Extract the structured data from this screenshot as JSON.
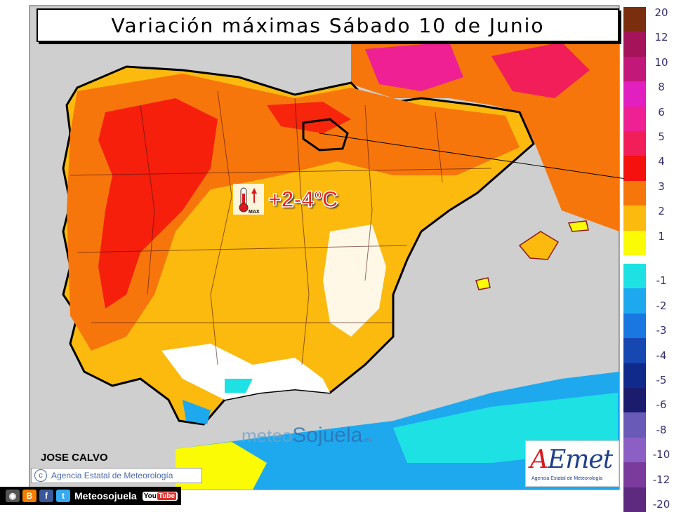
{
  "title": "Variación máximas Sábado 10 de Junio",
  "callout": {
    "value": "+2-4ºC",
    "icon": "thermometer-max-icon",
    "icon_label": "MAX"
  },
  "legend": [
    {
      "label": "20",
      "color": "#7a2e0e"
    },
    {
      "label": "12",
      "color": "#a5145a"
    },
    {
      "label": "10",
      "color": "#c2187a"
    },
    {
      "label": "8",
      "color": "#e21fbf"
    },
    {
      "label": "6",
      "color": "#ee2093"
    },
    {
      "label": "5",
      "color": "#f11e5a"
    },
    {
      "label": "4",
      "color": "#f5110d"
    },
    {
      "label": "3",
      "color": "#f7760c"
    },
    {
      "label": "2",
      "color": "#fbba0d"
    },
    {
      "label": "1",
      "color": "#fbfb06"
    },
    {
      "label": "-1",
      "color": "#1ee1e3"
    },
    {
      "label": "-2",
      "color": "#1ea9ef"
    },
    {
      "label": "-3",
      "color": "#1a76e0"
    },
    {
      "label": "-4",
      "color": "#1747b1"
    },
    {
      "label": "-5",
      "color": "#0f2a8a"
    },
    {
      "label": "-6",
      "color": "#1c1c6e"
    },
    {
      "label": "-8",
      "color": "#6a5ab8"
    },
    {
      "label": "-10",
      "color": "#8b5fc4"
    },
    {
      "label": "-12",
      "color": "#7a3b9c"
    },
    {
      "label": "-20",
      "color": "#5e2a80"
    }
  ],
  "author": "JOSE CALVO",
  "agency_credit": "Agencia Estatal de Meteorología",
  "watermark": {
    "part1": "meteo",
    "part2": "Sojuela",
    "part3": ".es"
  },
  "aemet_logo": {
    "text_a": "A",
    "text_rest": "Emet",
    "subtitle": "Agencia Estatal de Meteorología"
  },
  "social": {
    "handle": "Meteosojuela",
    "youtube_a": "You",
    "youtube_b": "Tube",
    "icons": [
      "camera-icon",
      "blogger-icon",
      "facebook-icon",
      "twitter-icon",
      "youtube-icon"
    ]
  }
}
